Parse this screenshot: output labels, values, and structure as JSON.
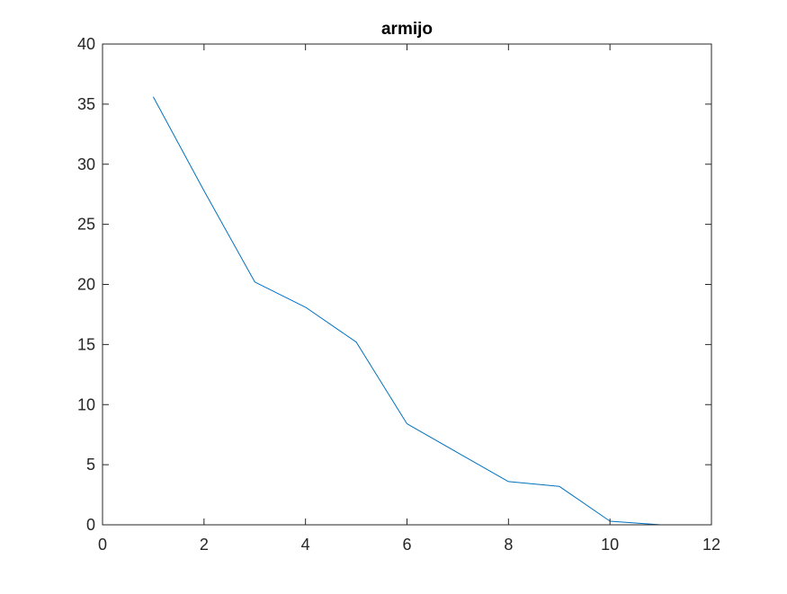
{
  "chart_data": {
    "type": "line",
    "title": "armijo",
    "xlabel": "",
    "ylabel": "",
    "xlim": [
      0,
      12
    ],
    "ylim": [
      0,
      40
    ],
    "xticks": [
      0,
      2,
      4,
      6,
      8,
      10,
      12
    ],
    "yticks": [
      0,
      5,
      10,
      15,
      20,
      25,
      30,
      35,
      40
    ],
    "grid": false,
    "legend": "none",
    "series": [
      {
        "color": "#0072BD",
        "x": [
          1,
          2,
          3,
          4,
          5,
          6,
          7,
          8,
          9,
          10,
          11
        ],
        "y": [
          35.6,
          27.8,
          20.2,
          18.1,
          15.2,
          8.4,
          6.0,
          3.6,
          3.2,
          0.3,
          0.0
        ]
      }
    ]
  }
}
